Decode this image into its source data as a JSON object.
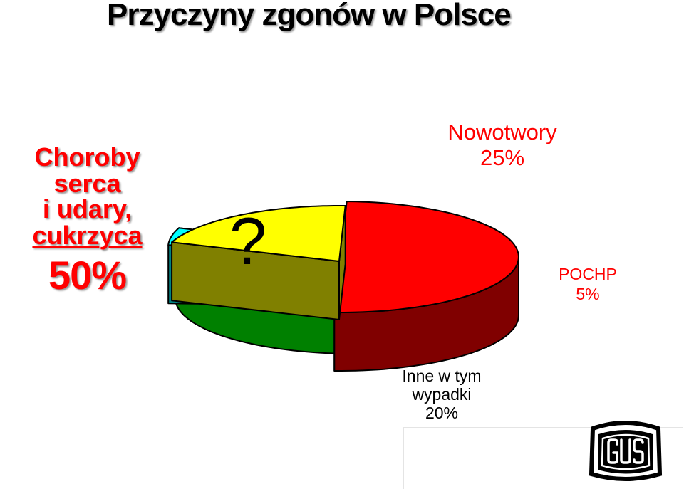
{
  "page": {
    "title": "Przyczyny zgonów w Polsce",
    "question_mark": "?"
  },
  "labels": {
    "heart": {
      "line1": "Choroby serca",
      "line2": "i udary,",
      "line3": "cukrzyca",
      "pct": "50%"
    },
    "nowotwory": {
      "name": "Nowotwory",
      "pct": "25%"
    },
    "pochp": {
      "name": "POCHP",
      "pct": "5%"
    },
    "inne": {
      "line1": "Inne w tym",
      "line2": "wypadki",
      "pct": "20%"
    }
  },
  "logo": {
    "text": "GUS"
  },
  "chart_data": {
    "type": "pie",
    "title": "Przyczyny zgonów w Polsce",
    "style": "3d-exploded",
    "slices": [
      {
        "label": "Choroby serca i udary, cukrzyca",
        "value": 50,
        "top_color": "#ff0000",
        "side_color": "#800000"
      },
      {
        "label": "Nowotwory",
        "value": 25,
        "top_color": "#00ff00",
        "side_color": "#008000"
      },
      {
        "label": "POCHP",
        "value": 5,
        "top_color": "#00ffff",
        "side_color": "#008080"
      },
      {
        "label": "Inne w tym wypadki",
        "value": 20,
        "top_color": "#ffff00",
        "side_color": "#808000"
      }
    ]
  }
}
